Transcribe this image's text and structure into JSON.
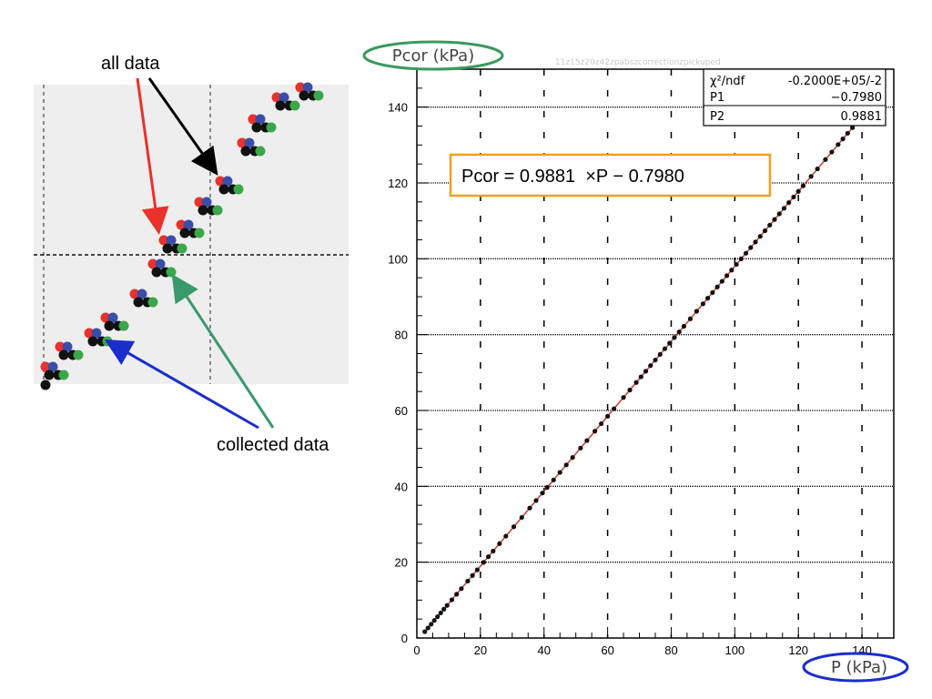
{
  "annotations": {
    "all_data": "all data",
    "collected_data": "collected data"
  },
  "colors": {
    "red": "#e8322b",
    "blue": "#3a4ea8",
    "black": "#111111",
    "green": "#3aa84a",
    "fit_line": "#d23a28",
    "formula_border": "#f0a020",
    "ylabel_ellipse": "#3a9a5a",
    "xlabel_ellipse": "#1a2ecc",
    "inset_bg": "#eeeeee"
  },
  "faint_title": "11z15z20z42zpabszcorrectionzpickuped",
  "formula": "Pcor = 0.9881  ×P − 0.7980",
  "stats_box": {
    "rows": [
      {
        "label": "χ²/ndf",
        "value": "-0.2000E+05/-2"
      },
      {
        "label": "P1",
        "value": "−0.7980"
      },
      {
        "label": "P2",
        "value": "0.9881"
      }
    ]
  },
  "chart_data": {
    "type": "scatter",
    "xlabel": "P (kPa)",
    "ylabel": "Pcor (kPa)",
    "xlim": [
      0,
      150
    ],
    "ylim": [
      0,
      150
    ],
    "xticks": [
      0,
      20,
      40,
      60,
      80,
      100,
      120,
      140
    ],
    "yticks": [
      0,
      20,
      40,
      60,
      80,
      100,
      120,
      140
    ],
    "grid": "dashed vertical and dotted horizontal lines",
    "fit": {
      "slope": 0.9881,
      "intercept": -0.798,
      "x_range": [
        2.5,
        144
      ]
    },
    "series": [
      {
        "x": [
          2.5,
          3.5,
          4.5,
          5.5,
          6.5,
          7.5,
          8.5,
          9.5,
          11,
          12.5,
          14,
          16,
          17.5,
          19,
          21,
          22.5,
          24,
          26,
          28,
          30.5,
          33,
          35.5,
          37.5,
          39.5,
          41,
          43,
          45,
          47,
          49,
          51.5,
          53.5,
          56,
          58,
          60,
          62,
          65,
          67,
          69,
          70.5,
          72,
          73.5,
          75,
          76.5,
          78,
          79.5,
          81,
          82.5,
          84,
          86,
          88,
          90,
          91.5,
          93,
          94.5,
          96,
          97.5,
          99,
          100.5,
          102,
          103.5,
          105,
          106.5,
          108,
          109.5,
          111,
          112.5,
          114,
          115.5,
          117,
          118.5,
          120,
          121.5,
          124,
          126,
          128.5,
          130.5,
          132.5,
          134,
          135.5,
          137,
          138.5,
          140,
          141.5,
          143
        ]
      }
    ]
  }
}
